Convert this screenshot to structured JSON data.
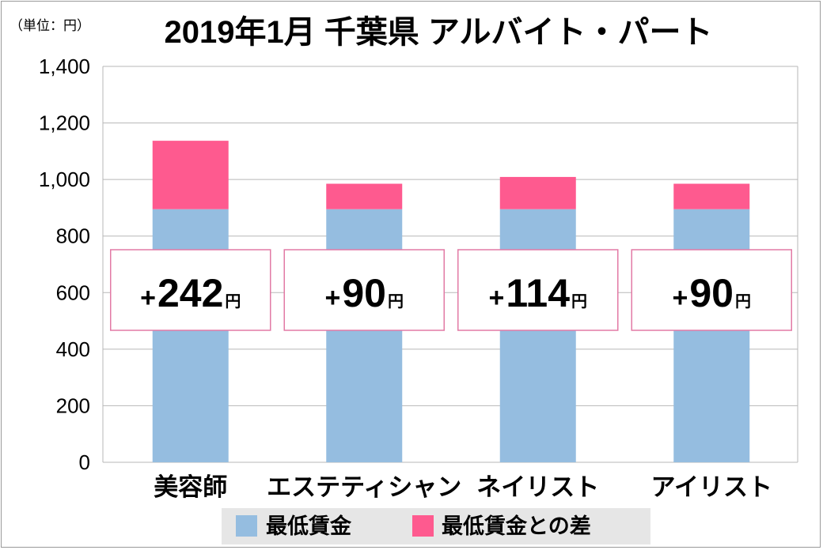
{
  "chart_data": {
    "type": "bar",
    "stacked": true,
    "title": "2019年1月 千葉県 アルバイト・パート",
    "unit_label": "（単位：円）",
    "categories": [
      "美容師",
      "エステティシャン",
      "ネイリスト",
      "アイリスト"
    ],
    "series": [
      {
        "name": "最低賃金",
        "values": [
          895,
          895,
          895,
          895
        ],
        "color": "#95bde0"
      },
      {
        "name": "最低賃金との差",
        "values": [
          242,
          90,
          114,
          90
        ],
        "color": "#fe5a8f"
      }
    ],
    "diff_labels": [
      {
        "plus": "+",
        "value": "242",
        "unit": "円"
      },
      {
        "plus": "+",
        "value": "90",
        "unit": "円"
      },
      {
        "plus": "+",
        "value": "114",
        "unit": "円"
      },
      {
        "plus": "+",
        "value": "90",
        "unit": "円"
      }
    ],
    "yticks": [
      "0",
      "200",
      "400",
      "600",
      "800",
      "1,000",
      "1,200",
      "1,400"
    ],
    "ylim": [
      0,
      1400
    ],
    "grid": true,
    "legend_position": "bottom",
    "label_box_border_color": "#e27aa5"
  }
}
